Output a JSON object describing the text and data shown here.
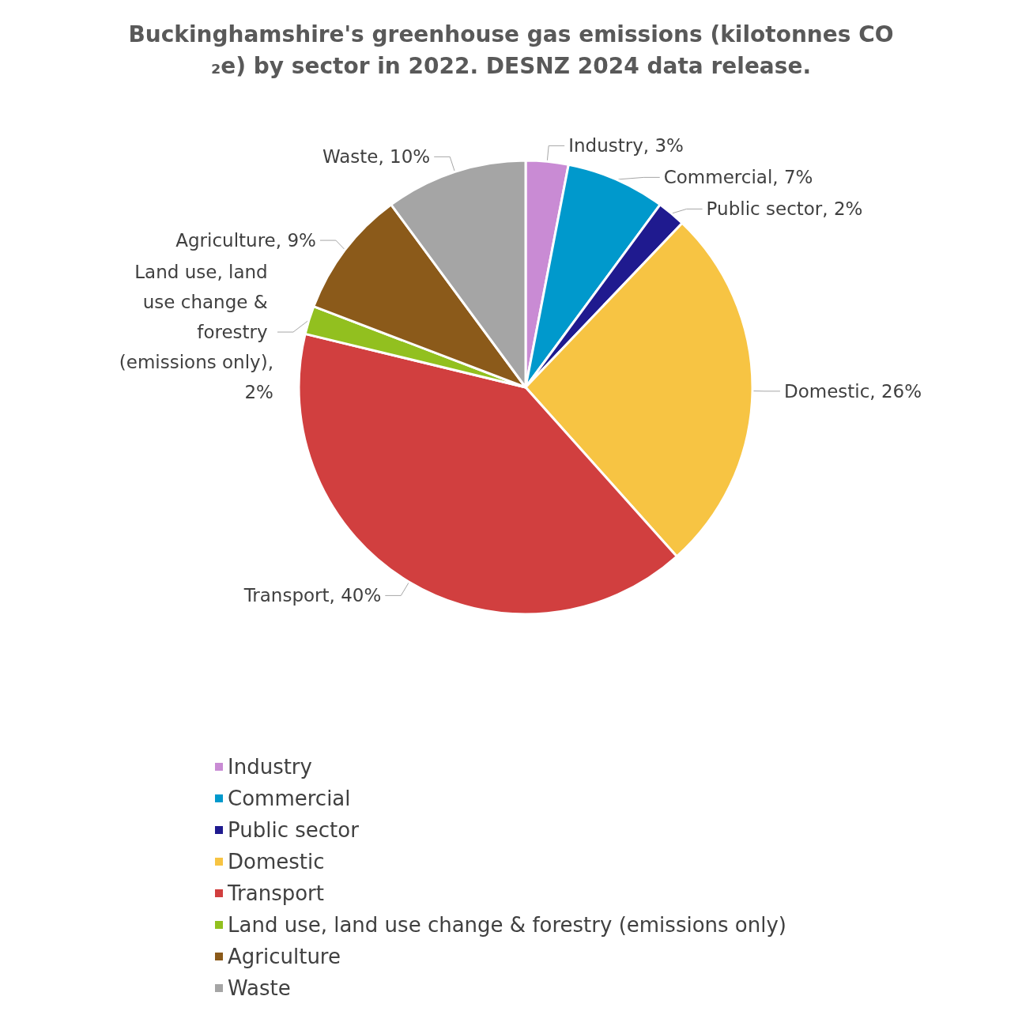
{
  "chart_data": {
    "type": "pie",
    "title": "Buckinghamshire's greenhouse gas emissions (kilotonnes CO₂e) by sector in 2022. DESNZ 2024 data release.",
    "categories": [
      "Industry",
      "Commercial",
      "Public sector",
      "Domestic",
      "Transport",
      "Land use, land use change & forestry (emissions only)",
      "Agriculture",
      "Waste"
    ],
    "values": [
      3,
      7,
      2,
      26,
      40,
      2,
      9,
      10
    ],
    "value_labels": [
      "Industry, 3%",
      "Commercial, 7%",
      "Public sector, 2%",
      "Domestic, 26%",
      "Transport, 40%",
      "Land use, land use change & forestry (emissions only), 2%",
      "Agriculture, 9%",
      "Waste, 10%"
    ],
    "colors": [
      "#c98bd4",
      "#0099cc",
      "#1f1a8f",
      "#f7c443",
      "#d13f3f",
      "#92c01f",
      "#8b5a1a",
      "#a5a5a5"
    ],
    "legend": "bottom"
  }
}
